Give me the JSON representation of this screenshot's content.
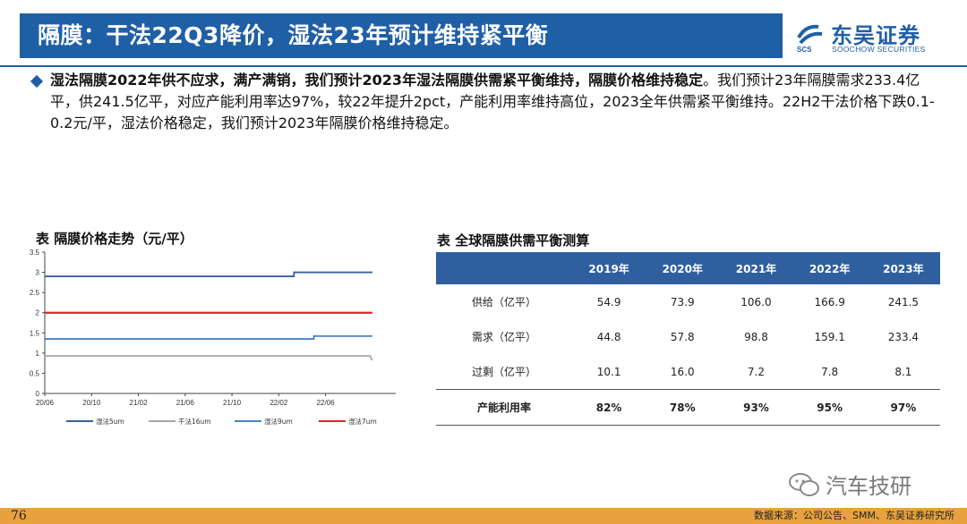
{
  "header": {
    "title": "隔膜：干法22Q3降价，湿法23年预计维持紧平衡",
    "logo_cn": "东吴证券",
    "logo_en": "SOOCHOW SECURITIES",
    "logo_mark": "SCS"
  },
  "bullet": {
    "lead": "湿法隔膜2022年供不应求，满产满销，我们预计2023年湿法隔膜供需紧平衡维持，隔膜价格维持稳定",
    "body": "。我们预计23年隔膜需求233.4亿平，供241.5亿平，对应产能利用率达97%，较22年提升2pct，产能利用率维持高位，2023全年供需紧平衡维持。22H2干法价格下跌0.1-0.2元/平，湿法价格稳定，我们预计2023年隔膜价格维持稳定。"
  },
  "left_caption": "表 隔膜价格走势（元/平）",
  "right_caption": "表 全球隔膜供需平衡测算",
  "chart_data": {
    "type": "line",
    "title": "表 隔膜价格走势（元/平）",
    "x_ticks": [
      "20/06",
      "20/10",
      "21/02",
      "21/06",
      "21/10",
      "22/02",
      "22/06"
    ],
    "x_range": [
      0,
      30
    ],
    "y_ticks": [
      "0",
      "0.5",
      "1",
      "1.5",
      "2",
      "2.5",
      "3",
      "3.5"
    ],
    "ylim": [
      0,
      3.5
    ],
    "grid": false,
    "legend_position": "bottom",
    "series": [
      {
        "name": "湿法5um",
        "color": "#3b5f9e",
        "points": [
          [
            0,
            2.9
          ],
          [
            21.3,
            2.9
          ],
          [
            21.3,
            3.0
          ],
          [
            28,
            3.0
          ]
        ]
      },
      {
        "name": "干法16um",
        "color": "#a6a6a6",
        "points": [
          [
            0,
            0.93
          ],
          [
            27.8,
            0.93
          ],
          [
            28,
            0.82
          ]
        ]
      },
      {
        "name": "湿法9um",
        "color": "#4a82c3",
        "points": [
          [
            0,
            1.35
          ],
          [
            23,
            1.35
          ],
          [
            23,
            1.42
          ],
          [
            28,
            1.42
          ]
        ]
      },
      {
        "name": "湿法7um",
        "color": "#d9262a",
        "points": [
          [
            0,
            2.0
          ],
          [
            28,
            2.0
          ]
        ]
      }
    ]
  },
  "table": {
    "headers": [
      "",
      "2019年",
      "2020年",
      "2021年",
      "2022年",
      "2023年"
    ],
    "rows": [
      {
        "label": "供给（亿平）",
        "values": [
          "54.9",
          "73.9",
          "106.0",
          "166.9",
          "241.5"
        ]
      },
      {
        "label": "需求（亿平）",
        "values": [
          "44.8",
          "57.8",
          "98.8",
          "159.1",
          "233.4"
        ]
      },
      {
        "label": "过剩（亿平）",
        "values": [
          "10.1",
          "16.0",
          "7.2",
          "7.8",
          "8.1"
        ]
      }
    ],
    "util_row": {
      "label": "产能利用率",
      "values": [
        "82%",
        "78%",
        "93%",
        "95%",
        "97%"
      ]
    }
  },
  "watermark": "汽车技研",
  "footer": {
    "page": "76",
    "source": "数据来源：公司公告、SMM、东吴证券研究所"
  },
  "colors": {
    "brand_blue": "#1f5fa6",
    "table_header": "#2f5f9e",
    "footer_orange": "#e8a23d"
  }
}
